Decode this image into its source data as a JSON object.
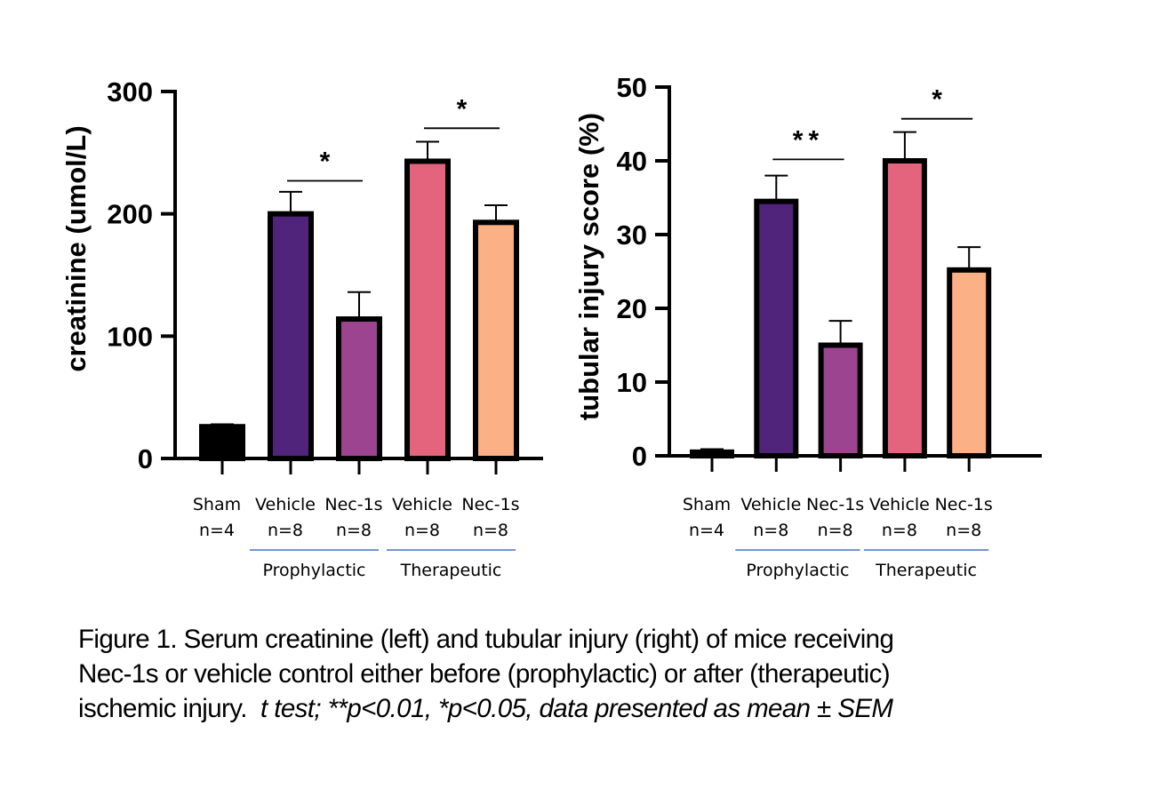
{
  "chart_data": [
    {
      "type": "bar",
      "id": "left",
      "title": "",
      "xlabel": "",
      "ylabel": "creatinine (umol/L)",
      "ylim": [
        0,
        300
      ],
      "yticks": [
        0,
        100,
        200,
        300
      ],
      "grid": false,
      "error_bars": "SEM (upper only)",
      "categories": [
        {
          "name": "Sham",
          "n": "n=4"
        },
        {
          "name": "Vehicle",
          "n": "n=8"
        },
        {
          "name": "Nec-1s",
          "n": "n=8"
        },
        {
          "name": "Vehicle",
          "n": "n=8"
        },
        {
          "name": "Nec-1s",
          "n": "n=8"
        }
      ],
      "values": [
        26,
        200,
        114,
        243,
        193
      ],
      "errors": [
        2,
        18,
        22,
        16,
        14
      ],
      "colors": [
        "#000000",
        "#50247a",
        "#9d4490",
        "#e3647c",
        "#fcb085"
      ],
      "groups": [
        {
          "label": "Prophylactic",
          "from": 1,
          "to": 2
        },
        {
          "label": "Therapeutic",
          "from": 3,
          "to": 4
        }
      ],
      "significance": [
        {
          "from": 1,
          "to": 2,
          "label": "*",
          "y": 227
        },
        {
          "from": 3,
          "to": 4,
          "label": "*",
          "y": 270
        }
      ]
    },
    {
      "type": "bar",
      "id": "right",
      "title": "",
      "xlabel": "",
      "ylabel": "tubular injury score (%)",
      "ylim": [
        0,
        50
      ],
      "yticks": [
        0,
        10,
        20,
        30,
        40,
        50
      ],
      "grid": false,
      "error_bars": "SEM (upper only)",
      "categories": [
        {
          "name": "Sham",
          "n": "n=4"
        },
        {
          "name": "Vehicle",
          "n": "n=8"
        },
        {
          "name": "Nec-1s",
          "n": "n=8"
        },
        {
          "name": "Vehicle",
          "n": "n=8"
        },
        {
          "name": "Nec-1s",
          "n": "n=8"
        }
      ],
      "values": [
        0.5,
        34.5,
        15.0,
        40.0,
        25.2
      ],
      "errors": [
        0.4,
        3.5,
        3.3,
        3.9,
        3.1
      ],
      "colors": [
        "#000000",
        "#50247a",
        "#9d4490",
        "#e3647c",
        "#fcb085"
      ],
      "groups": [
        {
          "label": "Prophylactic",
          "from": 1,
          "to": 2
        },
        {
          "label": "Therapeutic",
          "from": 3,
          "to": 4
        }
      ],
      "significance": [
        {
          "from": 1,
          "to": 2,
          "label": "**",
          "y": 40.2
        },
        {
          "from": 3,
          "to": 4,
          "label": "*",
          "y": 45.7
        }
      ]
    }
  ],
  "caption": {
    "line1": "Figure 1. Serum creatinine (left) and tubular injury (right) of mice receiving",
    "line2": "Nec-1s or vehicle control either before (prophylactic) or after (therapeutic)",
    "line3_plain": "ischemic injury.  ",
    "line3_italic": "t test; **p<0.01, *p<0.05, data presented as mean ± SEM"
  },
  "group_line_color": "#4472c4"
}
